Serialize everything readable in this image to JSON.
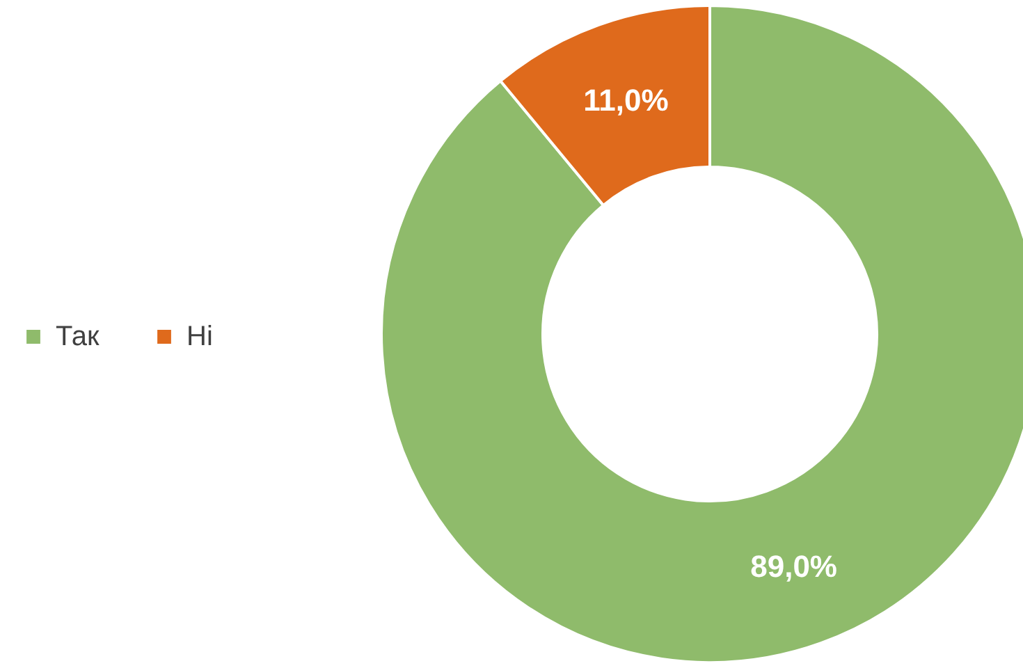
{
  "chart_data": {
    "type": "donut",
    "categories": [
      "Так",
      "Ні"
    ],
    "values": [
      89,
      11
    ],
    "colors": [
      "#8fbb6b",
      "#df6a1c"
    ],
    "value_labels": [
      "89,0%",
      "11,0%"
    ],
    "legend": "left"
  }
}
